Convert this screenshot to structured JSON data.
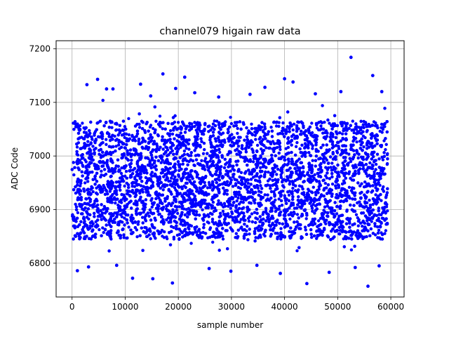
{
  "chart_data": {
    "type": "scatter",
    "title": "channel079 higain raw data",
    "xlabel": "sample number",
    "ylabel": "ADC Code",
    "xlim": [
      -3000,
      62500
    ],
    "ylim": [
      6737,
      7215
    ],
    "x_ticks": [
      0,
      10000,
      20000,
      30000,
      40000,
      50000,
      60000
    ],
    "y_ticks": [
      6800,
      6900,
      7000,
      7100,
      7200
    ],
    "x_tick_labels": [
      "0",
      "10000",
      "20000",
      "30000",
      "40000",
      "50000",
      "60000"
    ],
    "y_tick_labels": [
      "6800",
      "6900",
      "7000",
      "7100",
      "7200"
    ],
    "grid": true,
    "marker_color": "#0000ff",
    "series": [
      {
        "sample_count": 59400,
        "x_range": [
          0,
          59400
        ],
        "dense_band": [
          6845,
          7065
        ],
        "outlier_points": [
          [
            52500,
            7184
          ],
          [
            17100,
            7153
          ],
          [
            56600,
            7150
          ],
          [
            21200,
            7147
          ],
          [
            4800,
            7143
          ],
          [
            40000,
            7144
          ],
          [
            12900,
            7134
          ],
          [
            2800,
            7133
          ],
          [
            41600,
            7138
          ],
          [
            7700,
            7125
          ],
          [
            6500,
            7125
          ],
          [
            19500,
            7126
          ],
          [
            36300,
            7128
          ],
          [
            50600,
            7120
          ],
          [
            58300,
            7120
          ],
          [
            23100,
            7118
          ],
          [
            33500,
            7115
          ],
          [
            45800,
            7116
          ],
          [
            14800,
            7112
          ],
          [
            27600,
            7110
          ],
          [
            44200,
            6762
          ],
          [
            55700,
            6757
          ],
          [
            18900,
            6763
          ],
          [
            11400,
            6772
          ],
          [
            15200,
            6771
          ],
          [
            29900,
            6785
          ],
          [
            1000,
            6786
          ],
          [
            39200,
            6781
          ],
          [
            53300,
            6792
          ],
          [
            48400,
            6783
          ],
          [
            25800,
            6790
          ],
          [
            34800,
            6796
          ],
          [
            3100,
            6793
          ],
          [
            57800,
            6795
          ],
          [
            8400,
            6796
          ]
        ]
      }
    ]
  }
}
